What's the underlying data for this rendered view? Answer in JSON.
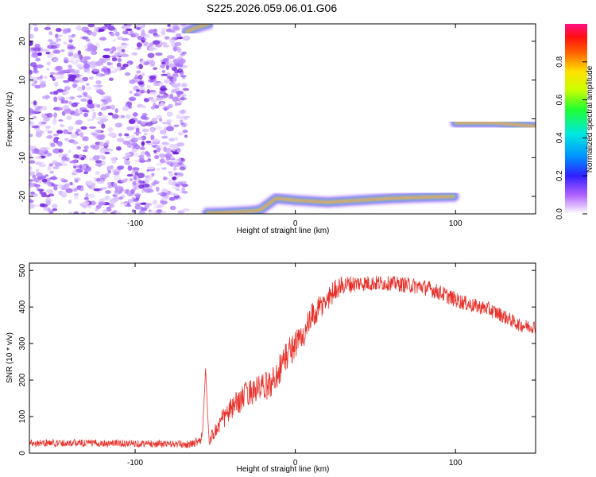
{
  "title": "S225.2026.059.06.01.G06",
  "colors": {
    "snr_line": "#e8312a",
    "scatter": "#8a2be2",
    "background": "#ffffff",
    "axis": "#000000"
  },
  "chart_data": [
    {
      "type": "heatmap",
      "xlabel": "Height of straight line (km)",
      "ylabel": "Frequency (Hz)",
      "xlim": [
        -166,
        150
      ],
      "ylim": [
        -24.5,
        24.5
      ],
      "xticks": [
        -100,
        0,
        100
      ],
      "yticks": [
        -20,
        -10,
        0,
        10,
        20
      ],
      "colorbar": {
        "label": "Normalized spectral amplitude",
        "range": [
          0,
          1
        ],
        "ticks": [
          0.0,
          0.2,
          0.4,
          0.6,
          0.8
        ],
        "tick_labels": [
          "0.0",
          "0.2",
          "0.4",
          "0.6",
          "0.8"
        ]
      },
      "noise_region": {
        "x_from": -166,
        "x_to": -68
      },
      "tracks": [
        {
          "name": "upper-left blob",
          "points": [
            [
              -68,
              22.5
            ],
            [
              -62,
              23.5
            ],
            [
              -54,
              24.5
            ]
          ]
        },
        {
          "name": "lower track",
          "points": [
            [
              -55,
              -24.3
            ],
            [
              -45,
              -24.2
            ],
            [
              -28,
              -23.8
            ],
            [
              -22,
              -23.5
            ],
            [
              -12,
              -20.5
            ],
            [
              0,
              -21.0
            ],
            [
              20,
              -21.5
            ],
            [
              40,
              -21.0
            ],
            [
              60,
              -20.5
            ],
            [
              80,
              -20.2
            ],
            [
              99,
              -20.0
            ]
          ]
        },
        {
          "name": "right track",
          "points": [
            [
              100,
              -1.0
            ],
            [
              110,
              -1.0
            ],
            [
              125,
              -1.0
            ],
            [
              140,
              -1.6
            ],
            [
              150,
              -2.0
            ]
          ]
        }
      ]
    },
    {
      "type": "line",
      "xlabel": "Height of straight line (km)",
      "ylabel": "SNR (10 * v/v)",
      "xlim": [
        -166,
        150
      ],
      "ylim": [
        0,
        520
      ],
      "xticks": [
        -100,
        0,
        100
      ],
      "yticks": [
        0,
        100,
        200,
        300,
        400,
        500
      ],
      "series": [
        {
          "name": "SNR",
          "x": [
            -166,
            -140,
            -110,
            -80,
            -65,
            -58,
            -56,
            -54,
            -50,
            -45,
            -40,
            -30,
            -20,
            -15,
            -10,
            -5,
            0,
            5,
            10,
            20,
            25,
            30,
            40,
            50,
            60,
            70,
            80,
            90,
            100,
            110,
            120,
            130,
            140,
            150
          ],
          "y": [
            28,
            28,
            27,
            25,
            24,
            42,
            235,
            35,
            60,
            95,
            120,
            165,
            180,
            190,
            230,
            270,
            300,
            320,
            370,
            420,
            450,
            460,
            465,
            465,
            465,
            460,
            455,
            440,
            420,
            405,
            395,
            375,
            350,
            345
          ],
          "noise_amplitude": [
            10,
            10,
            10,
            10,
            10,
            16,
            0,
            14,
            24,
            30,
            32,
            36,
            38,
            40,
            44,
            44,
            40,
            38,
            38,
            34,
            30,
            26,
            22,
            22,
            20,
            22,
            22,
            22,
            22,
            20,
            20,
            20,
            18,
            18
          ]
        }
      ]
    }
  ]
}
